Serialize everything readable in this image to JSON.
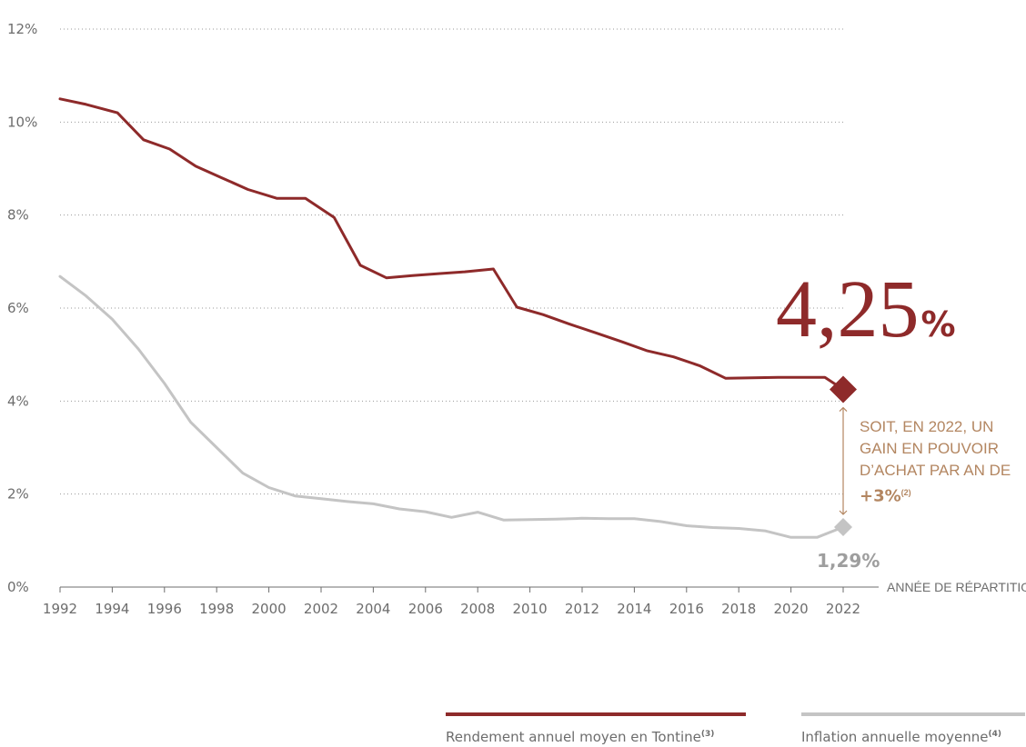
{
  "chart_data": {
    "type": "line",
    "title": "",
    "xlabel": "ANNÉE DE RÉPARTITION",
    "ylabel": "",
    "xlim": [
      1992,
      2022
    ],
    "ylim": [
      0,
      12
    ],
    "x_ticks": [
      1992,
      1994,
      1996,
      1998,
      2000,
      2002,
      2004,
      2006,
      2008,
      2010,
      2012,
      2014,
      2016,
      2018,
      2020,
      2022
    ],
    "y_ticks": [
      0,
      2,
      4,
      6,
      8,
      10,
      12
    ],
    "y_tick_labels": [
      "0%",
      "2%",
      "4%",
      "6%",
      "8%",
      "10%",
      "12%"
    ],
    "grid": "horizontal dotted",
    "legend_position": "bottom-right",
    "series": [
      {
        "name": "Rendement annuel moyen en Tontine",
        "name_sup": "(3)",
        "color": "#8e2a2a",
        "x": [
          1992,
          1993,
          1994.2,
          1995.2,
          1996.2,
          1997.2,
          1998.2,
          1999.2,
          2000.3,
          2001.4,
          2002.5,
          2003.5,
          2004.5,
          2005.5,
          2006.5,
          2007.5,
          2008.6,
          2009.5,
          2010.5,
          2011.5,
          2012.5,
          2013.5,
          2014.5,
          2015.5,
          2016.5,
          2017.5,
          2018.5,
          2019.5,
          2020.5,
          2021.3,
          2022
        ],
        "values": [
          10.5,
          10.38,
          10.2,
          9.62,
          9.42,
          9.05,
          8.8,
          8.55,
          8.36,
          8.36,
          7.95,
          6.92,
          6.65,
          6.7,
          6.74,
          6.78,
          6.84,
          6.02,
          5.86,
          5.66,
          5.47,
          5.28,
          5.08,
          4.95,
          4.76,
          4.49,
          4.5,
          4.51,
          4.51,
          4.51,
          4.25
        ]
      },
      {
        "name": "Inflation annuelle moyenne",
        "name_sup": "(4)",
        "color": "#c4c4c4",
        "x": [
          1992,
          1993,
          1994,
          1995,
          1996,
          1997,
          1998,
          1999,
          2000,
          2001,
          2002,
          2003,
          2004,
          2005,
          2006,
          2007,
          2008,
          2009,
          2010,
          2011,
          2012,
          2013,
          2014,
          2015,
          2016,
          2017,
          2018,
          2019,
          2020,
          2021,
          2022
        ],
        "values": [
          6.68,
          6.26,
          5.76,
          5.12,
          4.38,
          3.55,
          3.0,
          2.45,
          2.14,
          1.96,
          1.9,
          1.84,
          1.79,
          1.68,
          1.62,
          1.5,
          1.61,
          1.44,
          1.45,
          1.46,
          1.48,
          1.47,
          1.47,
          1.41,
          1.32,
          1.28,
          1.26,
          1.21,
          1.07,
          1.07,
          1.29
        ]
      }
    ],
    "annotations": {
      "end_value_main": "4,25",
      "end_value_main_unit": "%",
      "end_value_inflation": "1,29%",
      "gain_text": "SOIT, EN 2022, UN GAIN EN POUVOIR D’ACHAT PAR AN DE",
      "gain_value": "+3%",
      "gain_sup": "(2)"
    }
  }
}
